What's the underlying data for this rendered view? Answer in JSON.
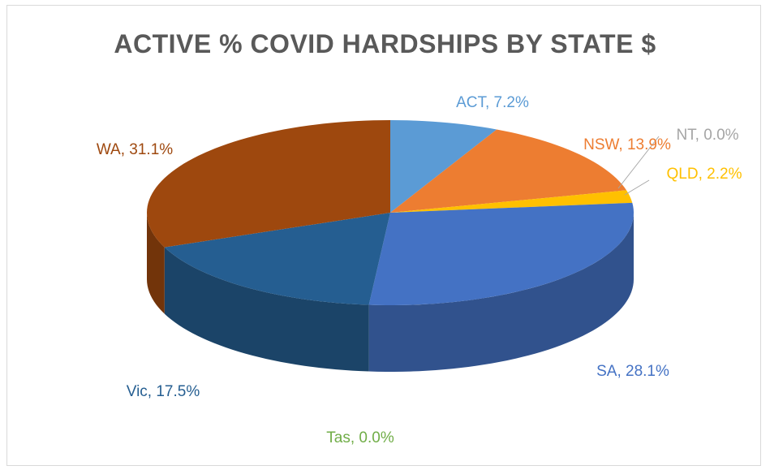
{
  "chart_data": {
    "type": "pie",
    "title": "ACTIVE % COVID HARDSHIPS BY STATE $",
    "categories": [
      "ACT",
      "NSW",
      "NT",
      "QLD",
      "SA",
      "Tas",
      "Vic",
      "WA"
    ],
    "values": [
      7.2,
      13.9,
      0.0,
      2.2,
      28.1,
      0.0,
      17.5,
      31.1
    ],
    "labels": [
      "ACT, 7.2%",
      "NSW, 13.9%",
      "NT, 0.0%",
      "QLD, 2.2%",
      "SA, 28.1%",
      "Tas, 0.0%",
      "Vic, 17.5%",
      "WA, 31.1%"
    ],
    "colors": [
      "#5b9bd5",
      "#ed7d31",
      "#a5a5a5",
      "#ffc000",
      "#4472c4",
      "#70ad47",
      "#255e91",
      "#9e480e"
    ],
    "label_colors": [
      "#5b9bd5",
      "#ed7d31",
      "#a5a5a5",
      "#ffc000",
      "#4472c4",
      "#70ad47",
      "#255e91",
      "#9e480e"
    ],
    "style": "3d",
    "legend": "none"
  }
}
